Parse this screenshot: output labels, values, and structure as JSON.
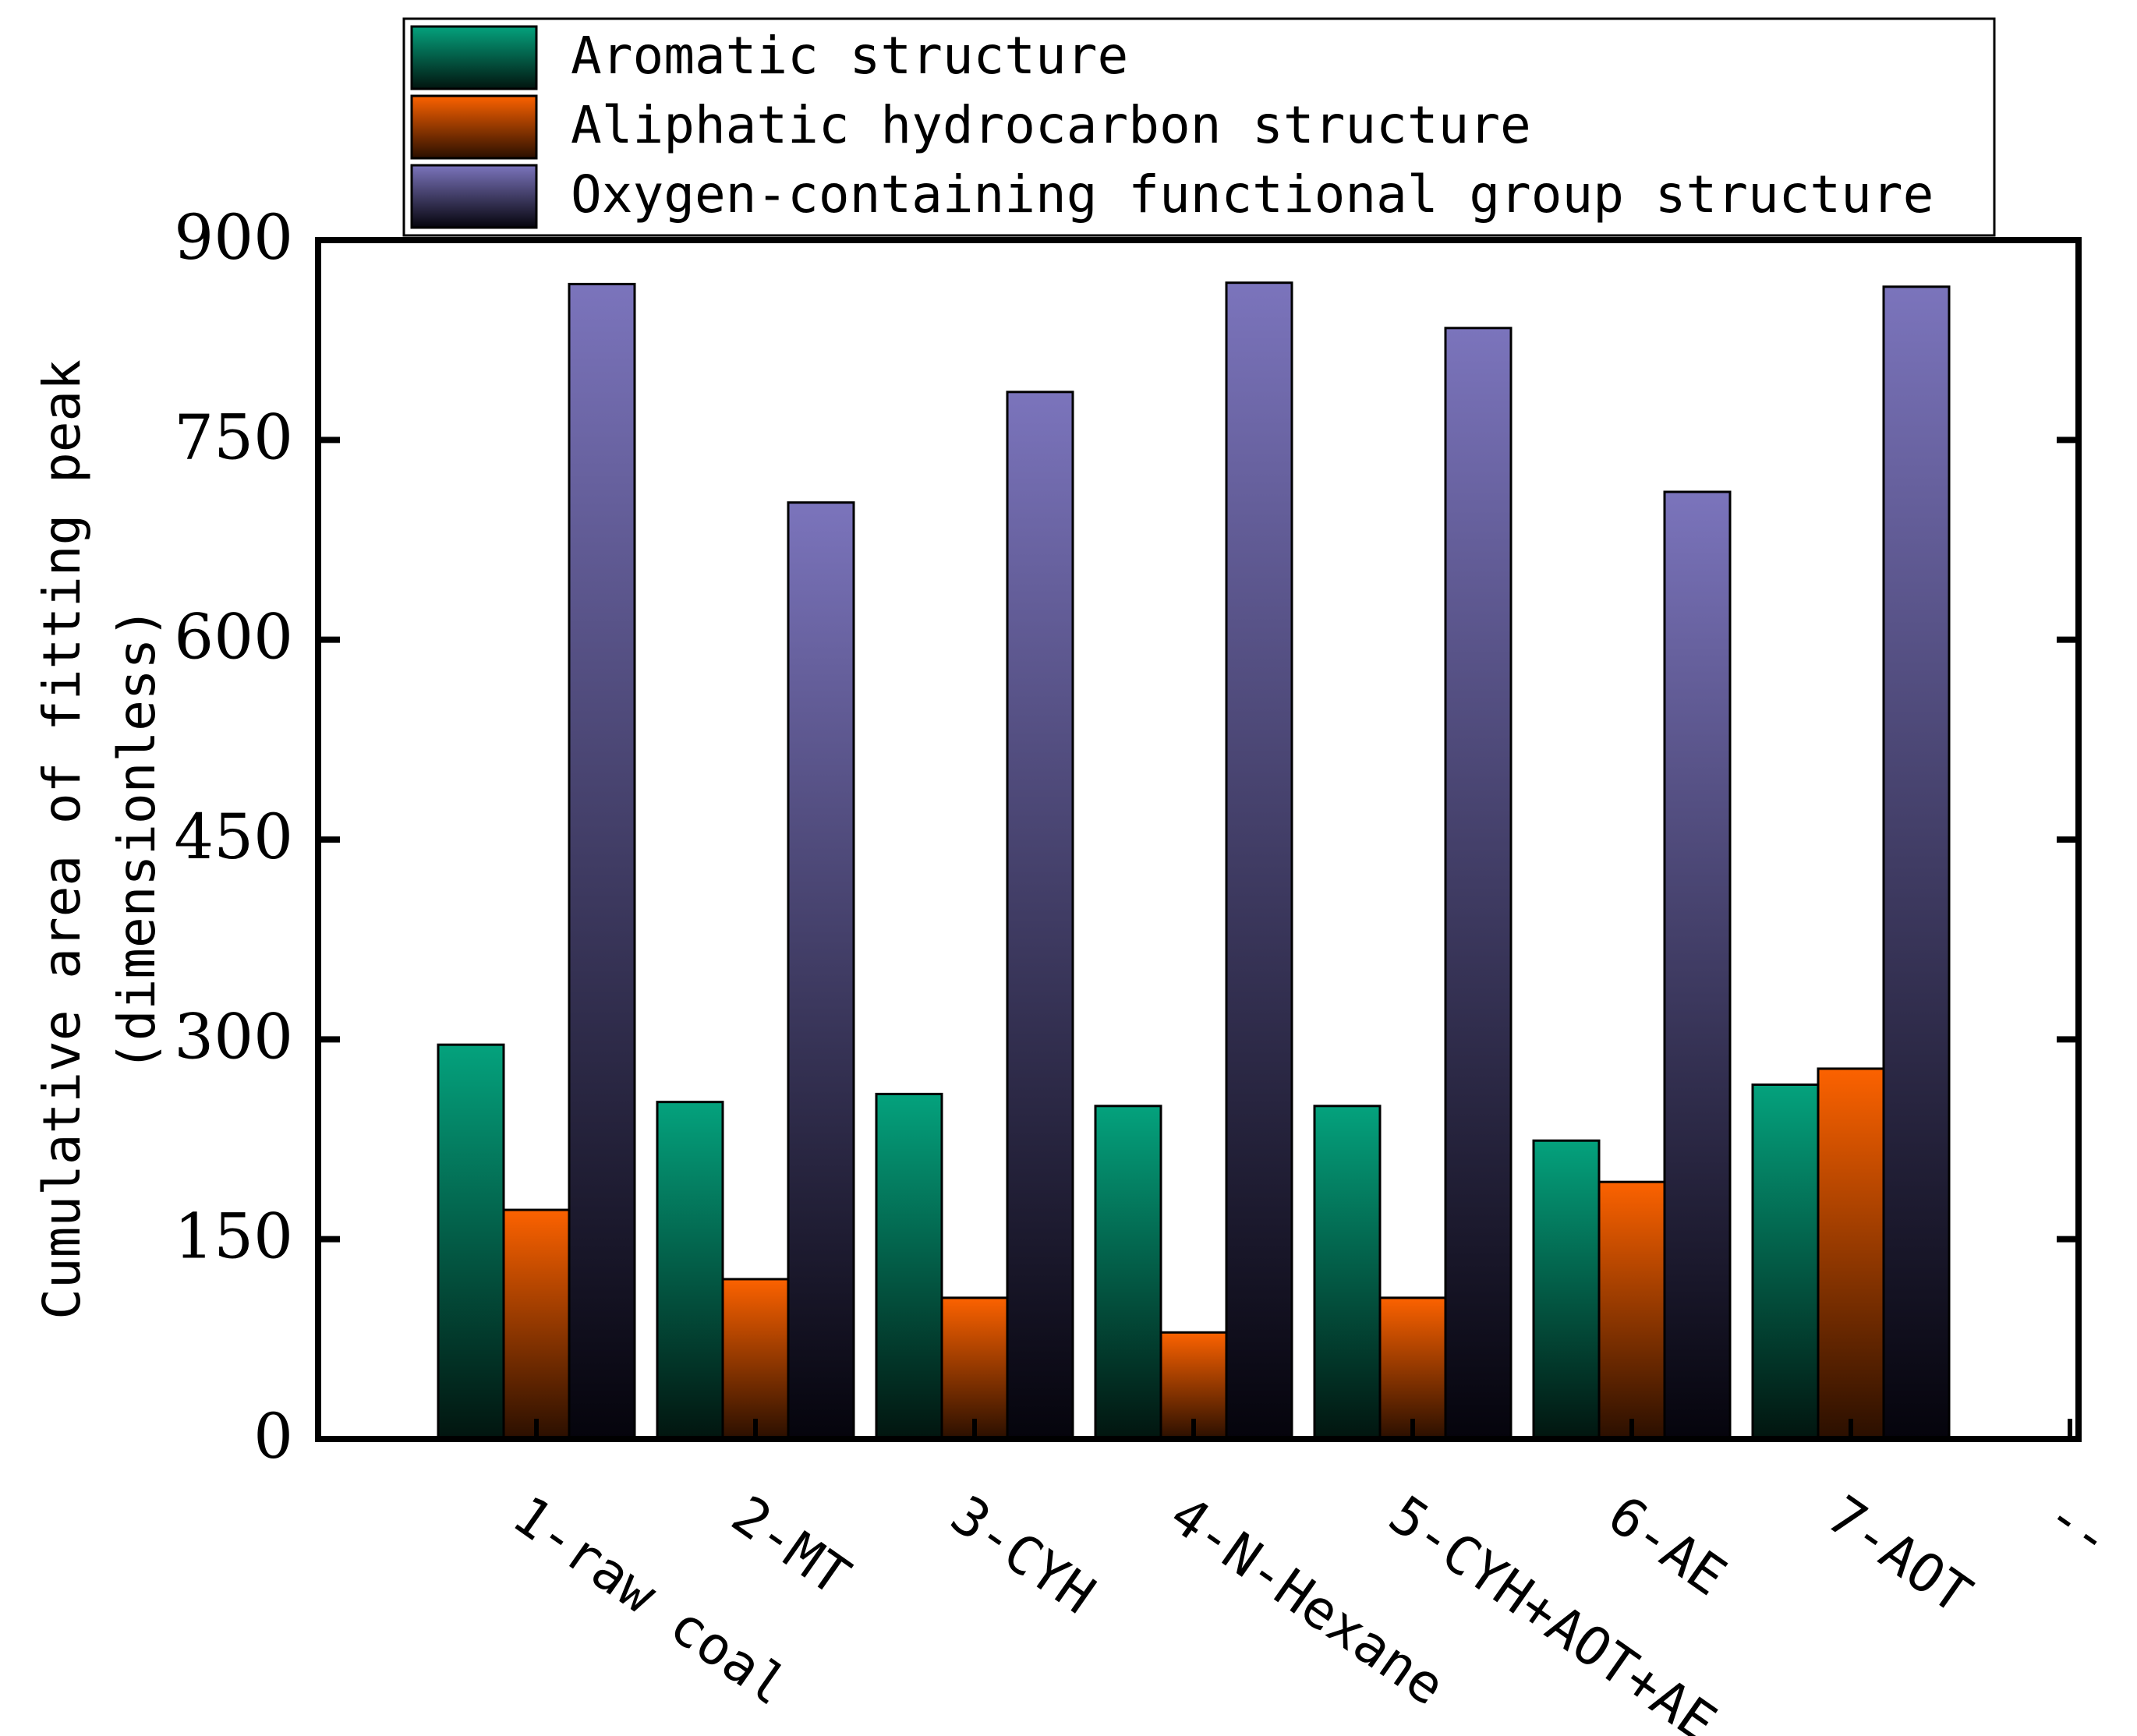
{
  "chart_data": {
    "type": "bar",
    "ylabel_line1": "Cumulative area of fitting peak",
    "ylabel_line2": "(dimensionless)",
    "xlabel": "",
    "ylim": [
      0,
      900
    ],
    "yticks": [
      0,
      150,
      300,
      450,
      600,
      750,
      900
    ],
    "categories": [
      "1-raw coal",
      "2-MT",
      "3-CYH",
      "4-N-Hexane",
      "5-CYH+AOT+AE",
      "6-AE",
      "7-AOT",
      "--"
    ],
    "series": [
      {
        "name": "Aromatic structure",
        "color_top": "#04a27d",
        "color_bottom": "#02150f",
        "values": [
          296,
          253,
          259,
          250,
          250,
          224,
          266,
          null
        ]
      },
      {
        "name": "Aliphatic hydrocarbon structure",
        "color_top": "#fc6200",
        "color_bottom": "#2a0f00",
        "values": [
          172,
          120,
          106,
          80,
          106,
          193,
          278,
          null
        ]
      },
      {
        "name": "Oxygen-containing functional group structure",
        "color_top": "#7b74bc",
        "color_bottom": "#05040c",
        "values": [
          867,
          703,
          786,
          868,
          834,
          711,
          865,
          null
        ]
      }
    ],
    "legend_position": "top",
    "grid": false
  }
}
